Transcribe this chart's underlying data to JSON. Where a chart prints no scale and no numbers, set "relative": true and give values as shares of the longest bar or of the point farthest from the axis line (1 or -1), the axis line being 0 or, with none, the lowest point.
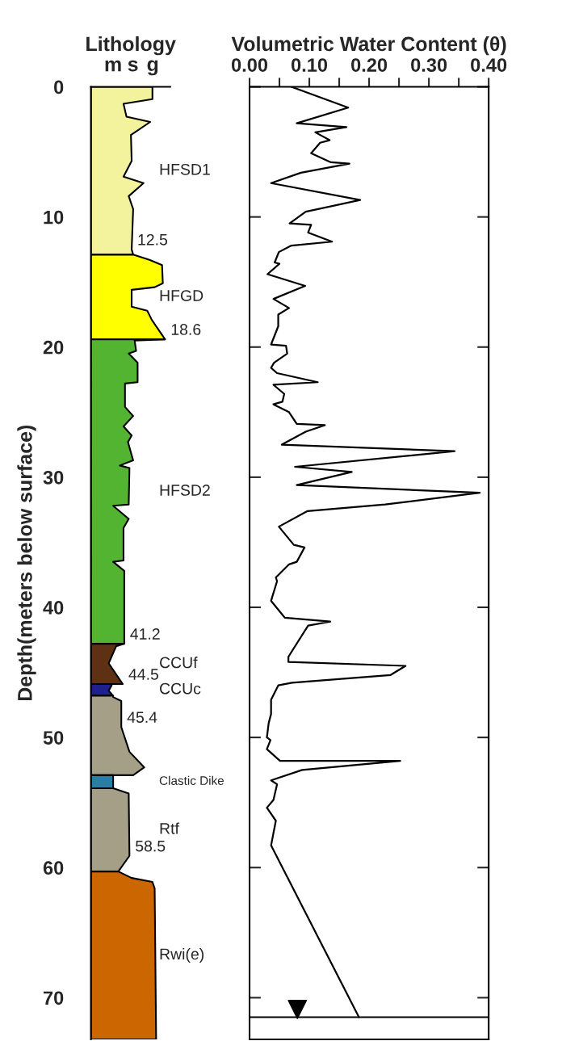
{
  "chart_data": [
    {
      "type": "area",
      "orientation": "horizontal",
      "relative": true,
      "title": "Lithology",
      "ylabel": "Depth(meters below surface)",
      "ylim": [
        73.2,
        0
      ],
      "yticks": [
        0,
        10,
        20,
        30,
        40,
        50,
        60,
        70
      ],
      "grid": false,
      "legend": false,
      "series": [
        {
          "name": "HFSD1",
          "color": "#f3f29d",
          "x": [
            0,
            0.95,
            1.3,
            2.3,
            2.7,
            3.7,
            5.7,
            6.9,
            7.4,
            8.4,
            9.4,
            12.5,
            12.9
          ],
          "values": [
            0.83,
            0.83,
            0.44,
            0.48,
            0.8,
            0.54,
            0.55,
            0.44,
            0.71,
            0.51,
            0.57,
            0.55,
            0.57
          ]
        },
        {
          "name": "HFGD",
          "color": "#ffff00",
          "x": [
            12.9,
            13.3,
            13.7,
            15.1,
            15.4,
            15.6,
            16.9,
            17.2,
            17.9,
            19.4
          ],
          "values": [
            0.57,
            0.79,
            0.96,
            0.97,
            0.86,
            0.55,
            0.55,
            0.76,
            0.82,
            1
          ]
        },
        {
          "name": "HFSD2",
          "color": "#53b432",
          "x": [
            19.4,
            19.5,
            20.3,
            20.5,
            21.2,
            22.7,
            22.8,
            24.6,
            25.3,
            26.1,
            26.8,
            27.3,
            28.7,
            29.1,
            29.3,
            32.1,
            32.2,
            33.2,
            33.9,
            36.4,
            36.5,
            37.2,
            42.8
          ],
          "values": [
            1,
            0.59,
            0.61,
            0.51,
            0.63,
            0.63,
            0.46,
            0.46,
            0.57,
            0.44,
            0.55,
            0.5,
            0.57,
            0.39,
            0.52,
            0.51,
            0.3,
            0.51,
            0.44,
            0.44,
            0.3,
            0.45,
            0.45
          ]
        },
        {
          "name": "CCUf",
          "color": "#5e3115",
          "x": [
            42.8,
            43.0,
            44.3,
            45.9
          ],
          "values": [
            0.45,
            0.34,
            0.24,
            0.43
          ]
        },
        {
          "name": "CCUc",
          "color": "#1f1f8f",
          "x": [
            45.9,
            46.0,
            46.4,
            46.8
          ],
          "values": [
            0.28,
            0.28,
            0.24,
            0.3
          ]
        },
        {
          "color": "#a59f87",
          "x": [
            46.8,
            46.9,
            47.2,
            49.2,
            51.1,
            52.3,
            52.9
          ],
          "values": [
            0.3,
            0.3,
            0.41,
            0.41,
            0.52,
            0.72,
            0.57
          ]
        },
        {
          "name": "Clastic Dike",
          "color": "#2a7ea6",
          "x": [
            52.9,
            53.9
          ],
          "values": [
            0.3,
            0.3
          ]
        },
        {
          "name": "Rtf",
          "color": "#a59f87",
          "x": [
            53.9,
            54.3,
            59.1,
            60.3
          ],
          "values": [
            0.3,
            0.51,
            0.52,
            0.37
          ]
        },
        {
          "name": "Rwi(e)",
          "color": "#cc6600",
          "x": [
            60.3,
            60.8,
            61.1,
            61.6,
            73.2
          ],
          "values": [
            0.37,
            0.55,
            0.83,
            0.86,
            0.88
          ]
        }
      ],
      "annotations": [
        "m",
        "s",
        "g",
        {
          "text": "12.5",
          "x": 0.55,
          "y": 12.5
        },
        {
          "text": "18.6",
          "x": 1,
          "y": 19.4
        },
        {
          "text": "41.2",
          "x": 0.45,
          "y": 42.8
        },
        {
          "text": "44.5",
          "x": 0.43,
          "y": 45.9
        },
        {
          "text": "45.4",
          "x": 0.41,
          "y": 49.2
        },
        {
          "text": "58.5",
          "x": 0.52,
          "y": 59.1
        }
      ]
    },
    {
      "type": "line",
      "orientation": "horizontal",
      "title": "Volumetric Water Content (θ)",
      "xlim": [
        0,
        0.4
      ],
      "xticks": [
        {
          "value": 0,
          "label": "0.00"
        },
        {
          "value": 0.05,
          "label": null
        },
        {
          "value": 0.1,
          "label": "0.10"
        },
        {
          "value": 0.15,
          "label": null
        },
        {
          "value": 0.2,
          "label": "0.20"
        },
        {
          "value": 0.25,
          "label": null
        },
        {
          "value": 0.3,
          "label": "0.30"
        },
        {
          "value": 0.35,
          "label": null
        },
        {
          "value": 0.4,
          "label": "0.40"
        }
      ],
      "ylim": [
        73.2,
        0
      ],
      "yticks": [
        0,
        10,
        20,
        30,
        40,
        50,
        60,
        70
      ],
      "tick_labels": "x",
      "grid": false,
      "legend": false,
      "ref_lines": [
        {
          "axis": "y",
          "value": 71.5,
          "color": "#000000"
        }
      ],
      "series": [
        {
          "color": "#000000",
          "x": [
            0,
            1.6,
            2.8,
            3.1,
            3.5,
            4.1,
            4.3,
            5.1,
            5.8,
            5.9,
            6.6,
            7.4,
            8.7,
            9.6,
            10.5,
            10.6,
            11.2,
            11.9,
            12.2,
            12.7,
            13.5,
            13.6,
            14.4,
            15.3,
            16.3,
            17.0,
            17.5,
            18.4,
            19.8,
            19.9,
            20.5,
            21.2,
            21.6,
            22.0,
            22.7,
            22.9,
            23.6,
            24.2,
            24.4,
            25.0,
            25.9,
            26.0,
            26.5,
            27.5,
            28.0,
            29.2,
            29.6,
            30.6,
            31.2,
            32.1,
            32.6,
            33.8,
            35.2,
            35.4,
            36.5,
            36.7,
            37.7,
            38.0,
            39.5,
            40.8,
            41.1,
            41.4,
            43.8,
            44.2,
            44.5,
            45.2,
            45.8,
            46.0,
            47.1,
            48.2,
            48.9,
            50.0,
            50.2,
            50.9,
            51.8,
            51.8,
            52.5,
            53.3,
            53.6,
            54.8,
            55.4,
            56.4,
            58.3,
            71.5
          ],
          "values": [
            0.07,
            0.165,
            0.079,
            0.162,
            0.11,
            0.134,
            0.118,
            0.103,
            0.136,
            0.167,
            0.086,
            0.036,
            0.185,
            0.094,
            0.067,
            0.103,
            0.098,
            0.138,
            0.07,
            0.049,
            0.042,
            0.05,
            0.03,
            0.093,
            0.04,
            0.066,
            0.048,
            0.048,
            0.036,
            0.061,
            0.063,
            0.041,
            0.036,
            0.046,
            0.114,
            0.04,
            0.058,
            0.055,
            0.04,
            0.066,
            0.079,
            0.126,
            0.094,
            0.054,
            0.343,
            0.076,
            0.171,
            0.079,
            0.385,
            0.227,
            0.097,
            0.049,
            0.074,
            0.092,
            0.079,
            0.066,
            0.044,
            0.046,
            0.036,
            0.059,
            0.135,
            0.098,
            0.065,
            0.065,
            0.261,
            0.236,
            0.071,
            0.048,
            0.036,
            0.036,
            0.032,
            0.029,
            0.035,
            0.029,
            0.051,
            0.252,
            0.088,
            0.036,
            0.046,
            0.04,
            0.029,
            0.044,
            0.036,
            0.183
          ]
        },
        {
          "type": "scatter",
          "marker": "triangle",
          "color": "#000000",
          "x": [
            70.9
          ],
          "values": [
            0.08
          ]
        }
      ]
    }
  ]
}
